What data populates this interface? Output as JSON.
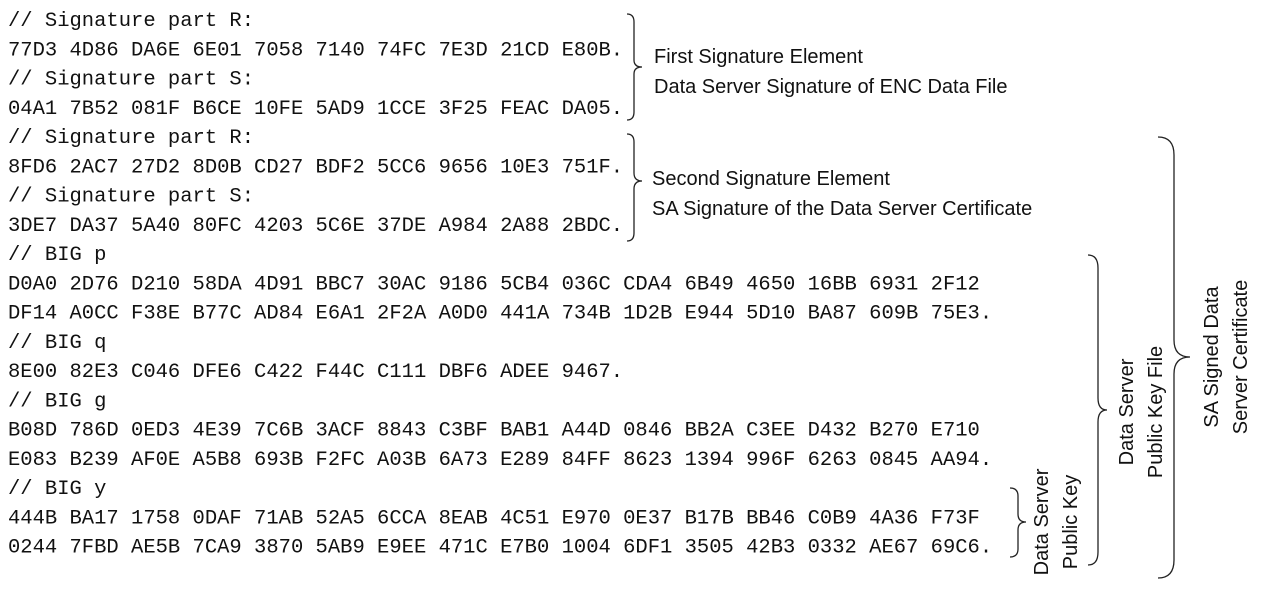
{
  "code_lines": [
    "// Signature part R:",
    "77D3 4D86 DA6E 6E01 7058 7140 74FC 7E3D 21CD E80B.",
    "// Signature part S:",
    "04A1 7B52 081F B6CE 10FE 5AD9 1CCE 3F25 FEAC DA05.",
    "// Signature part R:",
    "8FD6 2AC7 27D2 8D0B CD27 BDF2 5CC6 9656 10E3 751F.",
    "// Signature part S:",
    "3DE7 DA37 5A40 80FC 4203 5C6E 37DE A984 2A88 2BDC.",
    "// BIG p",
    "D0A0 2D76 D210 58DA 4D91 BBC7 30AC 9186 5CB4 036C CDA4 6B49 4650 16BB 6931 2F12",
    "DF14 A0CC F38E B77C AD84 E6A1 2F2A A0D0 441A 734B 1D2B E944 5D10 BA87 609B 75E3.",
    "// BIG q",
    "8E00 82E3 C046 DFE6 C422 F44C C111 DBF6 ADEE 9467.",
    "// BIG g",
    "B08D 786D 0ED3 4E39 7C6B 3ACF 8843 C3BF BAB1 A44D 0846 BB2A C3EE D432 B270 E710",
    "E083 B239 AF0E A5B8 693B F2FC A03B 6A73 E289 84FF 8623 1394 996F 6263 0845 AA94.",
    "// BIG y",
    "444B BA17 1758 0DAF 71AB 52A5 6CCA 8EAB 4C51 E970 0E37 B17B BB46 C0B9 4A36 F73F",
    "0244 7FBD AE5B 7CA9 3870 5AB9 E9EE 471C E7B0 1004 6DF1 3505 42B3 0332 AE67 69C6."
  ],
  "annotations": [
    {
      "lines": [
        "First Signature Element",
        "Data Server Signature of ENC Data File"
      ]
    },
    {
      "lines": [
        "Second Signature Element",
        "SA Signature of the Data Server Certificate"
      ]
    },
    {
      "lines": [
        "Data Server",
        "Public Key"
      ]
    },
    {
      "lines": [
        "Data Server",
        "Public Key File"
      ]
    },
    {
      "lines": [
        "SA Signed Data",
        "Server Certificate"
      ]
    }
  ]
}
